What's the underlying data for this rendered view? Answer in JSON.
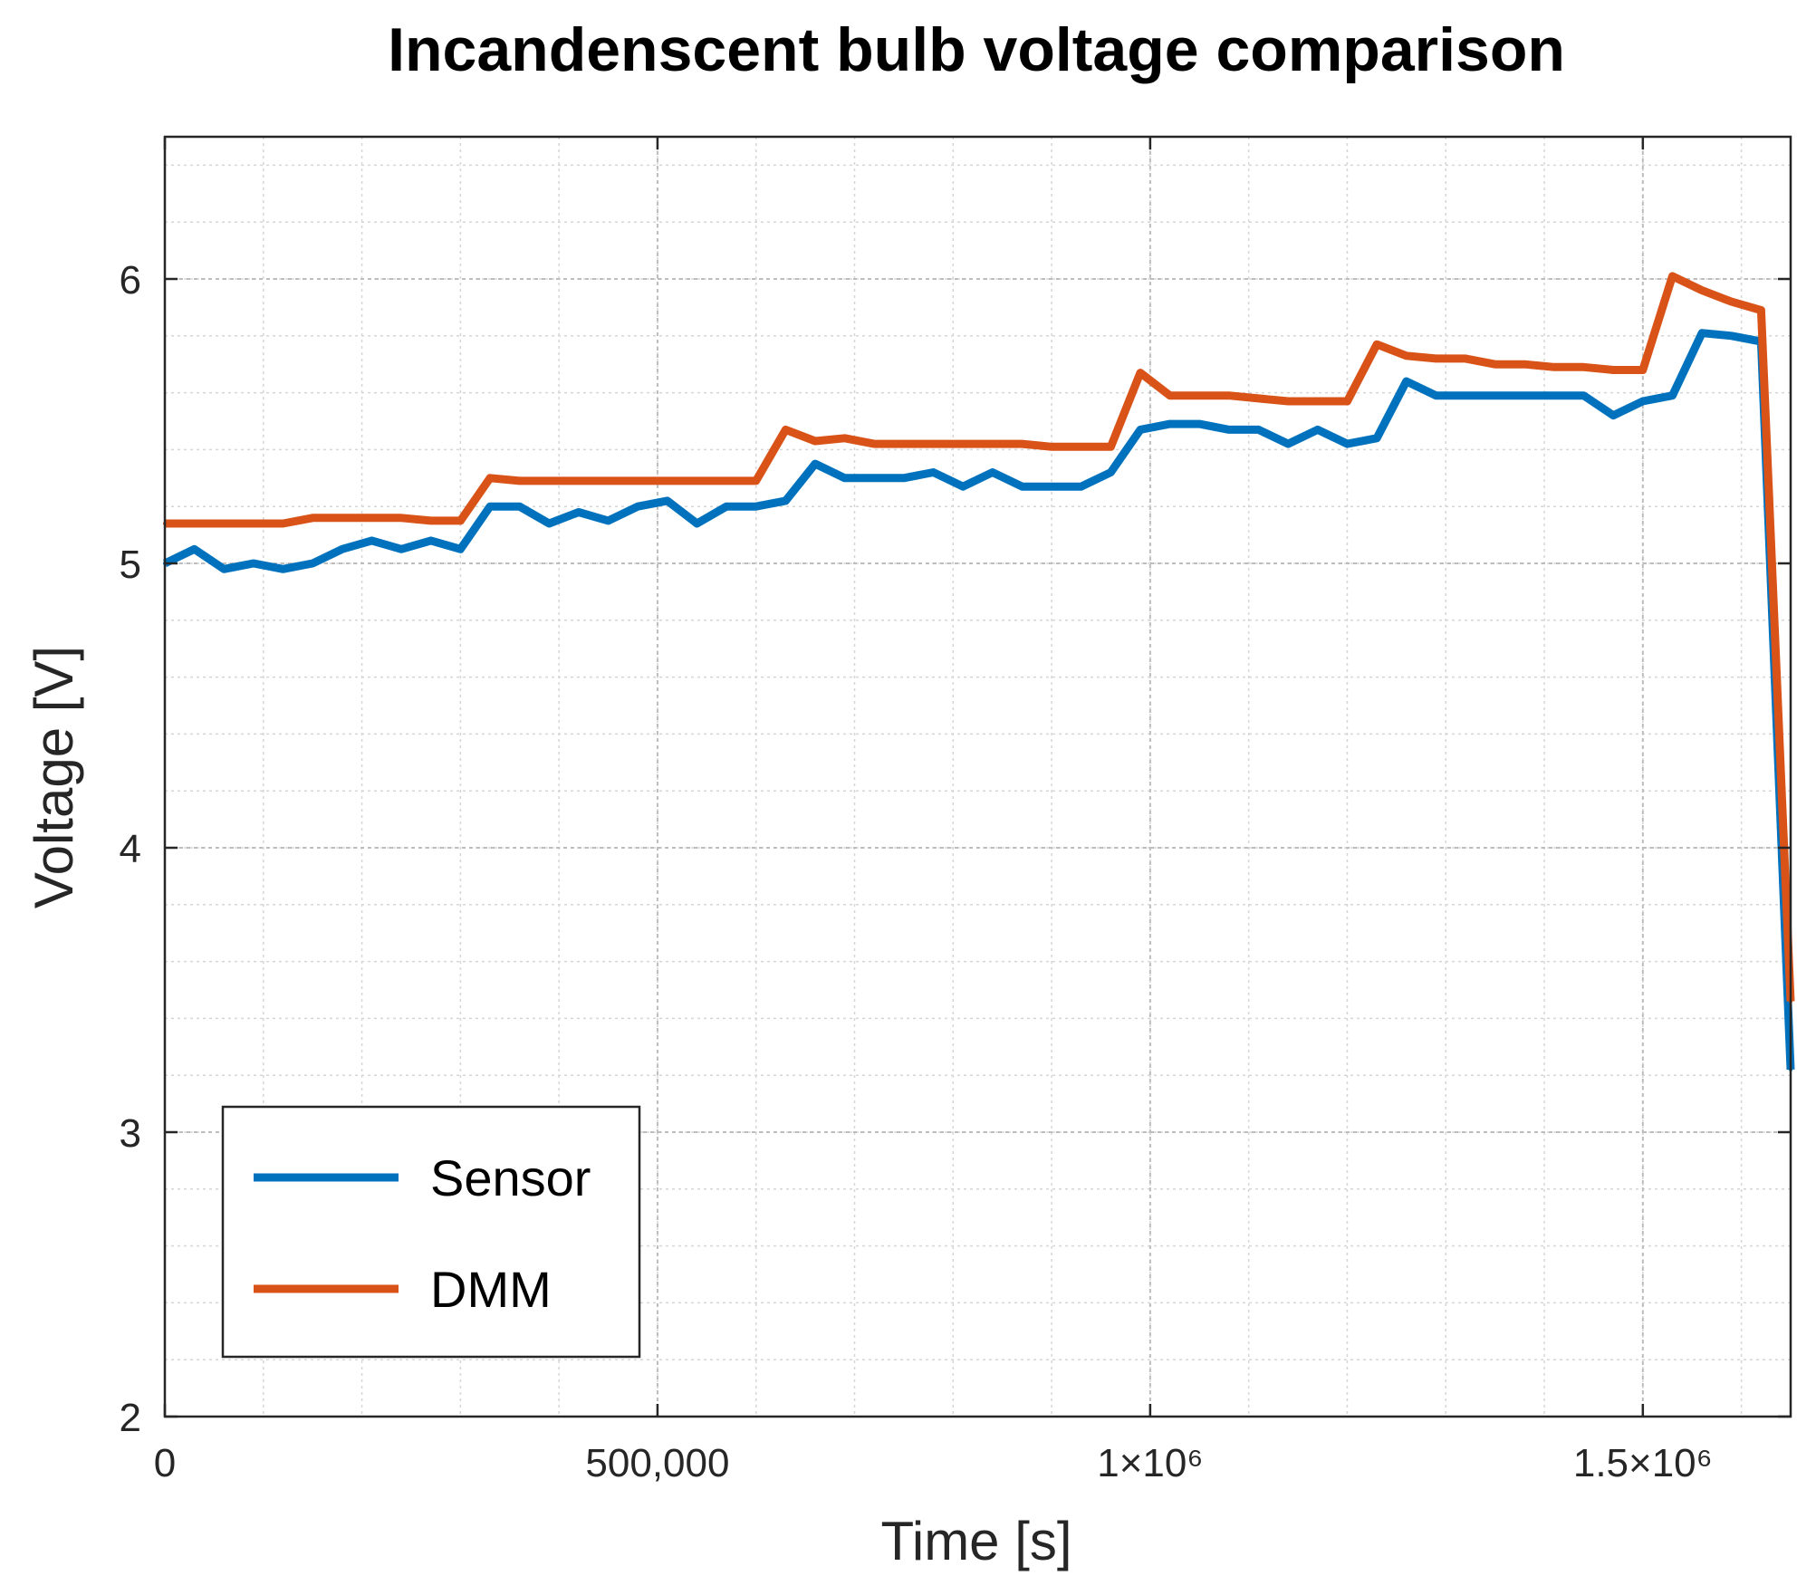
{
  "chart_data": {
    "type": "line",
    "title": "Incandenscent bulb voltage comparison",
    "xlabel": "Time [s]",
    "ylabel": "Voltage [V]",
    "xlim": [
      0,
      1650000
    ],
    "ylim": [
      2,
      6.5
    ],
    "grid": true,
    "minor_grid": true,
    "legend_position": "bottom-left",
    "x_ticks": [
      {
        "value": 0,
        "label": "0"
      },
      {
        "value": 500000,
        "label": "500,000"
      },
      {
        "value": 1000000,
        "label": "1×10⁶"
      },
      {
        "value": 1500000,
        "label": "1.5×10⁶"
      }
    ],
    "y_ticks": [
      {
        "value": 2,
        "label": "2"
      },
      {
        "value": 3,
        "label": "3"
      },
      {
        "value": 4,
        "label": "4"
      },
      {
        "value": 5,
        "label": "5"
      },
      {
        "value": 6,
        "label": "6"
      }
    ],
    "x_minor_step": 100000,
    "y_minor_step": 0.2,
    "series": [
      {
        "name": "Sensor",
        "color": "#0072BD",
        "x": [
          0,
          30000,
          60000,
          90000,
          120000,
          150000,
          180000,
          210000,
          240000,
          270000,
          300000,
          330000,
          360000,
          390000,
          420000,
          450000,
          480000,
          510000,
          540000,
          570000,
          600000,
          630000,
          660000,
          690000,
          720000,
          750000,
          780000,
          810000,
          840000,
          870000,
          900000,
          930000,
          960000,
          990000,
          1020000,
          1050000,
          1080000,
          1110000,
          1140000,
          1170000,
          1200000,
          1230000,
          1260000,
          1290000,
          1320000,
          1350000,
          1380000,
          1410000,
          1440000,
          1470000,
          1500000,
          1530000,
          1560000,
          1590000,
          1620000,
          1650000
        ],
        "values": [
          5.0,
          5.05,
          4.98,
          5.0,
          4.98,
          5.0,
          5.05,
          5.08,
          5.05,
          5.08,
          5.05,
          5.2,
          5.2,
          5.14,
          5.18,
          5.15,
          5.2,
          5.22,
          5.14,
          5.2,
          5.2,
          5.22,
          5.35,
          5.3,
          5.3,
          5.3,
          5.32,
          5.27,
          5.32,
          5.27,
          5.27,
          5.27,
          5.32,
          5.47,
          5.49,
          5.49,
          5.47,
          5.47,
          5.42,
          5.47,
          5.42,
          5.44,
          5.64,
          5.59,
          5.59,
          5.59,
          5.59,
          5.59,
          5.59,
          5.52,
          5.57,
          5.59,
          5.81,
          5.8,
          5.78,
          3.22
        ]
      },
      {
        "name": "DMM",
        "color": "#D95319",
        "x": [
          0,
          30000,
          60000,
          90000,
          120000,
          150000,
          180000,
          210000,
          240000,
          270000,
          300000,
          330000,
          360000,
          390000,
          420000,
          450000,
          480000,
          510000,
          540000,
          570000,
          600000,
          630000,
          660000,
          690000,
          720000,
          750000,
          780000,
          810000,
          840000,
          870000,
          900000,
          930000,
          960000,
          990000,
          1020000,
          1050000,
          1080000,
          1110000,
          1140000,
          1170000,
          1200000,
          1230000,
          1260000,
          1290000,
          1320000,
          1350000,
          1380000,
          1410000,
          1440000,
          1470000,
          1500000,
          1530000,
          1560000,
          1590000,
          1620000,
          1650000
        ],
        "values": [
          5.14,
          5.14,
          5.14,
          5.14,
          5.14,
          5.16,
          5.16,
          5.16,
          5.16,
          5.15,
          5.15,
          5.3,
          5.29,
          5.29,
          5.29,
          5.29,
          5.29,
          5.29,
          5.29,
          5.29,
          5.29,
          5.47,
          5.43,
          5.44,
          5.42,
          5.42,
          5.42,
          5.42,
          5.42,
          5.42,
          5.41,
          5.41,
          5.41,
          5.67,
          5.59,
          5.59,
          5.59,
          5.58,
          5.57,
          5.57,
          5.57,
          5.77,
          5.73,
          5.72,
          5.72,
          5.7,
          5.7,
          5.69,
          5.69,
          5.68,
          5.68,
          6.01,
          5.96,
          5.92,
          5.89,
          3.46
        ]
      }
    ]
  }
}
